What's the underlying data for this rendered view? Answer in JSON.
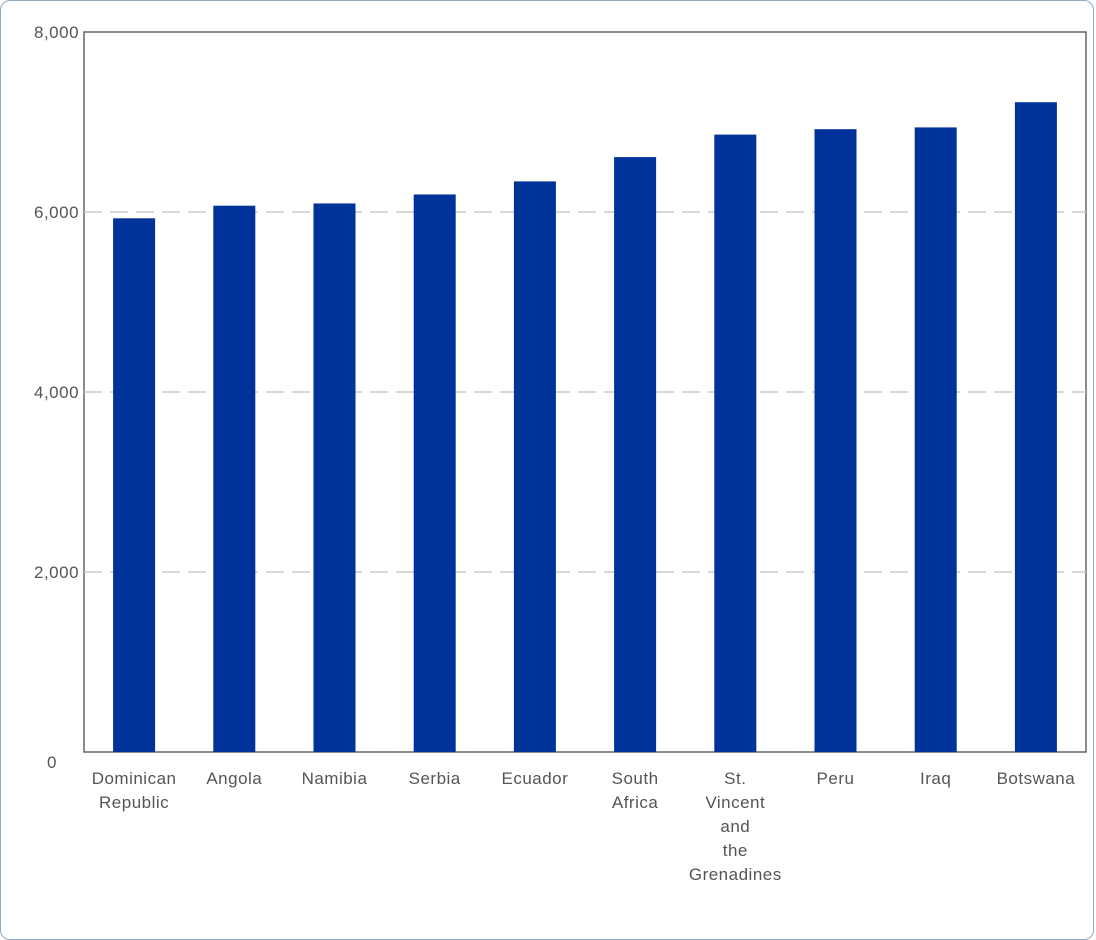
{
  "chart_data": {
    "type": "bar",
    "categories": [
      "Dominican Republic",
      "Angola",
      "Namibia",
      "Serbia",
      "Ecuador",
      "South Africa",
      "St. Vincent and the Grenadines",
      "Peru",
      "Iraq",
      "Botswana"
    ],
    "category_lines": [
      [
        "Dominican",
        "Republic"
      ],
      [
        "Angola"
      ],
      [
        "Namibia"
      ],
      [
        "Serbia"
      ],
      [
        "Ecuador"
      ],
      [
        "South",
        "Africa"
      ],
      [
        "St.",
        "Vincent",
        "and",
        "the",
        "Grenadines"
      ],
      [
        "Peru"
      ],
      [
        "Iraq"
      ],
      [
        "Botswana"
      ]
    ],
    "values": [
      5930,
      6070,
      6095,
      6195,
      6340,
      6610,
      6860,
      6920,
      6940,
      7220
    ],
    "ylim": [
      0,
      8000
    ],
    "yticks": [
      0,
      2000,
      4000,
      6000,
      8000
    ],
    "ytick_labels": [
      "0",
      "2,000",
      "4,000",
      "6,000",
      "8,000"
    ],
    "title": "",
    "xlabel": "",
    "ylabel": "",
    "grid": true,
    "grid_style": "dashed horizontal",
    "legend": "none",
    "colors": {
      "bar": "#003399",
      "grid": "#cccccc",
      "axis": "#666666",
      "text": "#555555",
      "frame": "#8fa9c0"
    }
  }
}
